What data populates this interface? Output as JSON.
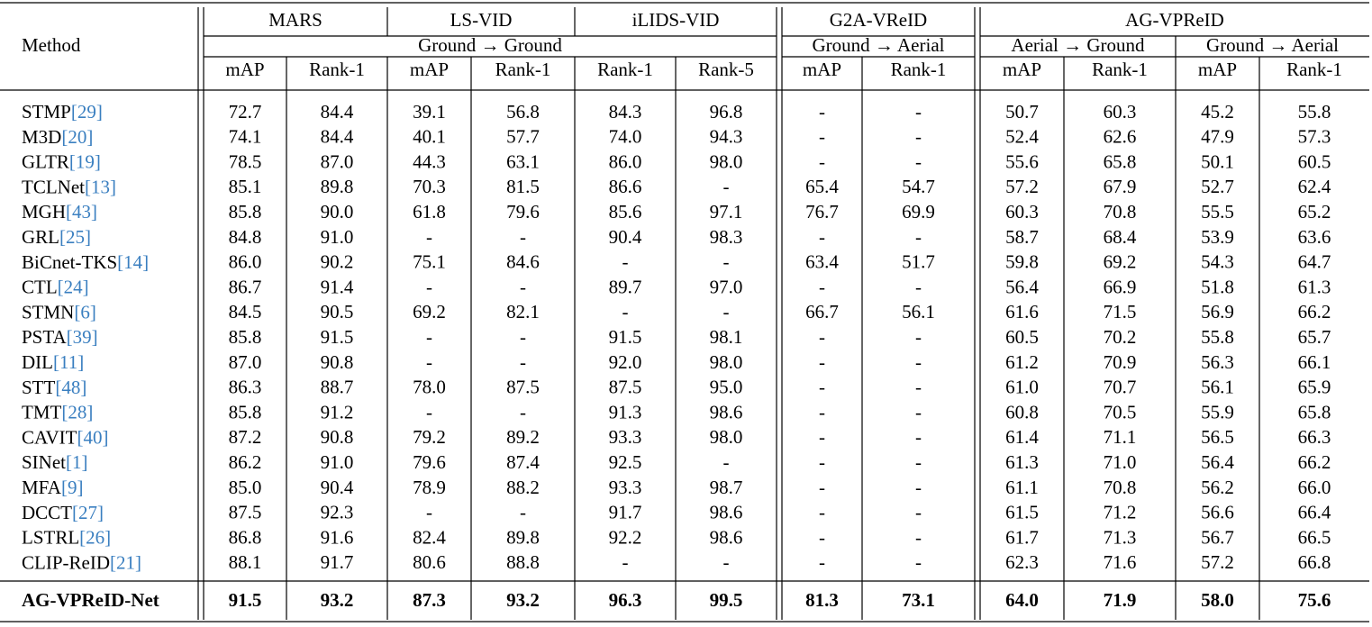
{
  "header": {
    "method": "Method",
    "datasets": [
      "MARS",
      "LS-VID",
      "iLIDS-VID",
      "G2A-VReID",
      "AG-VPReID"
    ],
    "settings": [
      "Ground → Ground",
      "Ground → Aerial",
      "Aerial → Ground",
      "Ground → Aerial"
    ],
    "metrics": [
      "mAP",
      "Rank-1",
      "mAP",
      "Rank-1",
      "Rank-1",
      "Rank-5",
      "mAP",
      "Rank-1",
      "mAP",
      "Rank-1",
      "mAP",
      "Rank-1"
    ]
  },
  "rows": [
    {
      "method": "STMP",
      "ref": "[29]",
      "cells": [
        "72.7",
        "84.4",
        "39.1",
        "56.8",
        "84.3",
        "96.8",
        "-",
        "-",
        "50.7",
        "60.3",
        "45.2",
        "55.8"
      ]
    },
    {
      "method": "M3D",
      "ref": "[20]",
      "cells": [
        "74.1",
        "84.4",
        "40.1",
        "57.7",
        "74.0",
        "94.3",
        "-",
        "-",
        "52.4",
        "62.6",
        "47.9",
        "57.3"
      ]
    },
    {
      "method": "GLTR",
      "ref": "[19]",
      "cells": [
        "78.5",
        "87.0",
        "44.3",
        "63.1",
        "86.0",
        "98.0",
        "-",
        "-",
        "55.6",
        "65.8",
        "50.1",
        "60.5"
      ]
    },
    {
      "method": "TCLNet",
      "ref": "[13]",
      "cells": [
        "85.1",
        "89.8",
        "70.3",
        "81.5",
        "86.6",
        "-",
        "65.4",
        "54.7",
        "57.2",
        "67.9",
        "52.7",
        "62.4"
      ]
    },
    {
      "method": "MGH",
      "ref": "[43]",
      "cells": [
        "85.8",
        "90.0",
        "61.8",
        "79.6",
        "85.6",
        "97.1",
        "76.7",
        "69.9",
        "60.3",
        "70.8",
        "55.5",
        "65.2"
      ]
    },
    {
      "method": "GRL",
      "ref": "[25]",
      "cells": [
        "84.8",
        "91.0",
        "-",
        "-",
        "90.4",
        "98.3",
        "-",
        "-",
        "58.7",
        "68.4",
        "53.9",
        "63.6"
      ]
    },
    {
      "method": "BiCnet-TKS",
      "ref": "[14]",
      "cells": [
        "86.0",
        "90.2",
        "75.1",
        "84.6",
        "-",
        "-",
        "63.4",
        "51.7",
        "59.8",
        "69.2",
        "54.3",
        "64.7"
      ]
    },
    {
      "method": "CTL",
      "ref": "[24]",
      "cells": [
        "86.7",
        "91.4",
        "-",
        "-",
        "89.7",
        "97.0",
        "-",
        "-",
        "56.4",
        "66.9",
        "51.8",
        "61.3"
      ]
    },
    {
      "method": "STMN",
      "ref": "[6]",
      "cells": [
        "84.5",
        "90.5",
        "69.2",
        "82.1",
        "-",
        "-",
        "66.7",
        "56.1",
        "61.6",
        "71.5",
        "56.9",
        "66.2"
      ]
    },
    {
      "method": "PSTA",
      "ref": "[39]",
      "cells": [
        "85.8",
        "91.5",
        "-",
        "-",
        "91.5",
        "98.1",
        "-",
        "-",
        "60.5",
        "70.2",
        "55.8",
        "65.7"
      ]
    },
    {
      "method": "DIL",
      "ref": "[11]",
      "cells": [
        "87.0",
        "90.8",
        "-",
        "-",
        "92.0",
        "98.0",
        "-",
        "-",
        "61.2",
        "70.9",
        "56.3",
        "66.1"
      ]
    },
    {
      "method": "STT",
      "ref": "[48]",
      "cells": [
        "86.3",
        "88.7",
        "78.0",
        "87.5",
        "87.5",
        "95.0",
        "-",
        "-",
        "61.0",
        "70.7",
        "56.1",
        "65.9"
      ]
    },
    {
      "method": "TMT",
      "ref": "[28]",
      "cells": [
        "85.8",
        "91.2",
        "-",
        "-",
        "91.3",
        "98.6",
        "-",
        "-",
        "60.8",
        "70.5",
        "55.9",
        "65.8"
      ]
    },
    {
      "method": "CAVIT",
      "ref": "[40]",
      "cells": [
        "87.2",
        "90.8",
        "79.2",
        "89.2",
        "93.3",
        "98.0",
        "-",
        "-",
        "61.4",
        "71.1",
        "56.5",
        "66.3"
      ]
    },
    {
      "method": "SINet",
      "ref": "[1]",
      "cells": [
        "86.2",
        "91.0",
        "79.6",
        "87.4",
        "92.5",
        "-",
        "-",
        "-",
        "61.3",
        "71.0",
        "56.4",
        "66.2"
      ]
    },
    {
      "method": "MFA",
      "ref": "[9]",
      "cells": [
        "85.0",
        "90.4",
        "78.9",
        "88.2",
        "93.3",
        "98.7",
        "-",
        "-",
        "61.1",
        "70.8",
        "56.2",
        "66.0"
      ]
    },
    {
      "method": "DCCT",
      "ref": "[27]",
      "cells": [
        "87.5",
        "92.3",
        "-",
        "-",
        "91.7",
        "98.6",
        "-",
        "-",
        "61.5",
        "71.2",
        "56.6",
        "66.4"
      ]
    },
    {
      "method": "LSTRL",
      "ref": "[26]",
      "cells": [
        "86.8",
        "91.6",
        "82.4",
        "89.8",
        "92.2",
        "98.6",
        "-",
        "-",
        "61.7",
        "71.3",
        "56.7",
        "66.5"
      ]
    },
    {
      "method": "CLIP-ReID",
      "ref": "[21]",
      "cells": [
        "88.1",
        "91.7",
        "80.6",
        "88.8",
        "-",
        "-",
        "-",
        "-",
        "62.3",
        "71.6",
        "57.2",
        "66.8"
      ]
    }
  ],
  "ours": {
    "method": "AG-VPReID-Net",
    "cells": [
      "91.5",
      "93.2",
      "87.3",
      "93.2",
      "96.3",
      "99.5",
      "81.3",
      "73.1",
      "64.0",
      "71.9",
      "58.0",
      "75.6"
    ]
  }
}
